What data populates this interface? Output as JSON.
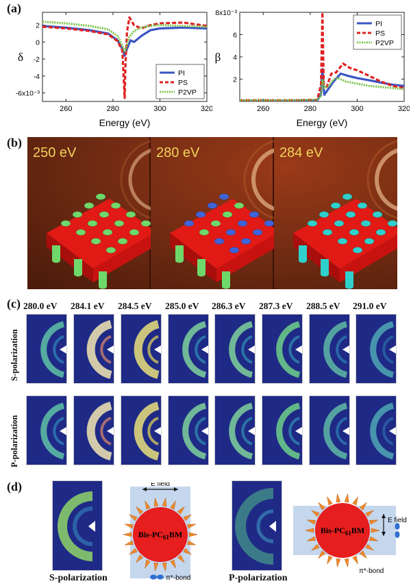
{
  "panels": {
    "a": "(a)",
    "b": "(b)",
    "c": "(c)",
    "d": "(d)"
  },
  "chart_data": [
    {
      "type": "line",
      "ylabel": "δ",
      "xlabel": "Energy (eV)",
      "xlim": [
        250,
        320
      ],
      "ylim": [
        -7,
        3.5
      ],
      "x_ticks": [
        "260",
        "280",
        "300",
        "320"
      ],
      "y_ticks": [
        "2",
        "0",
        "-2",
        "-4",
        "-6x10⁻³"
      ],
      "y_tick_values": [
        2,
        0,
        -2,
        -4,
        -6
      ],
      "legend": "bottom-right",
      "series": [
        {
          "name": "PI",
          "color": "#3b55c4",
          "dash": "solid",
          "x": [
            250,
            260,
            270,
            278,
            282,
            284,
            285,
            286,
            287.5,
            289,
            292,
            296,
            300,
            310,
            320
          ],
          "y": [
            1.9,
            1.7,
            1.4,
            1.0,
            0.2,
            -0.8,
            -1.6,
            -0.8,
            0.2,
            0.0,
            0.7,
            1.4,
            1.6,
            1.7,
            1.6
          ]
        },
        {
          "name": "PS",
          "color": "#e02020",
          "dash": "dashed",
          "x": [
            250,
            260,
            270,
            278,
            282,
            284,
            285,
            285.3,
            286,
            287,
            289,
            292,
            296,
            300,
            310,
            320
          ],
          "y": [
            1.8,
            1.6,
            1.3,
            0.9,
            0.1,
            -1.0,
            -6.6,
            -3.0,
            1.2,
            2.9,
            2.0,
            1.6,
            2.0,
            2.2,
            2.3,
            1.9
          ]
        },
        {
          "name": "P2VP",
          "color": "#7cc34a",
          "dash": "dotted",
          "x": [
            250,
            260,
            270,
            278,
            282,
            284,
            285,
            286,
            287,
            289,
            292,
            296,
            300,
            310,
            320
          ],
          "y": [
            2.4,
            2.2,
            1.9,
            1.5,
            0.7,
            -0.4,
            -1.2,
            -0.3,
            0.6,
            1.3,
            1.7,
            1.9,
            2.0,
            1.9,
            1.8
          ]
        }
      ]
    },
    {
      "type": "line",
      "ylabel": "β",
      "xlabel": "Energy (eV)",
      "xlim": [
        250,
        320
      ],
      "ylim": [
        0,
        8
      ],
      "x_ticks": [
        "260",
        "280",
        "300",
        "320"
      ],
      "y_ticks": [
        "8x10⁻³",
        "6",
        "4",
        "2"
      ],
      "y_tick_values": [
        8,
        6,
        4,
        2
      ],
      "legend": "top-right",
      "series": [
        {
          "name": "PI",
          "color": "#3b55c4",
          "dash": "solid",
          "x": [
            250,
            270,
            283,
            284.5,
            285.2,
            286,
            288,
            290,
            293,
            296,
            300,
            305,
            310,
            315,
            320
          ],
          "y": [
            0.05,
            0.05,
            0.1,
            0.6,
            2.9,
            0.6,
            1.2,
            1.8,
            2.5,
            2.3,
            2.1,
            1.9,
            1.7,
            1.5,
            1.4
          ]
        },
        {
          "name": "PS",
          "color": "#e02020",
          "dash": "dashed",
          "x": [
            250,
            270,
            283,
            284.6,
            285.2,
            285.8,
            287,
            289,
            291,
            294,
            297,
            300,
            305,
            310,
            315,
            320
          ],
          "y": [
            0.1,
            0.1,
            0.15,
            1.5,
            8.0,
            1.5,
            1.3,
            2.5,
            2.6,
            3.4,
            3.0,
            2.8,
            2.3,
            1.8,
            1.4,
            1.2
          ]
        },
        {
          "name": "P2VP",
          "color": "#7cc34a",
          "dash": "dotted",
          "x": [
            250,
            270,
            283,
            284.5,
            285.3,
            286,
            288,
            290,
            292,
            295,
            300,
            305,
            310,
            315,
            320
          ],
          "y": [
            0.1,
            0.1,
            0.15,
            0.5,
            1.9,
            1.2,
            1.4,
            2.0,
            2.1,
            1.8,
            1.6,
            1.4,
            1.3,
            1.2,
            1.1
          ]
        }
      ]
    }
  ],
  "b": {
    "energies": [
      "250 eV",
      "280 eV",
      "284 eV"
    ]
  },
  "c": {
    "energies": [
      "280.0 eV",
      "284.1 eV",
      "284.5 eV",
      "285.0 eV",
      "286.3 eV",
      "287.3 eV",
      "288.5 eV",
      "291.0 eV"
    ],
    "rows": [
      "S-polarization",
      "P-polarization"
    ]
  },
  "d": {
    "molecule": "Bis-PC",
    "molecule_sub": "61",
    "molecule_end": "BM",
    "efield": "E field",
    "bond": "π*-bond",
    "s_caption": "S-polarization",
    "p_caption": "P-polarization"
  }
}
